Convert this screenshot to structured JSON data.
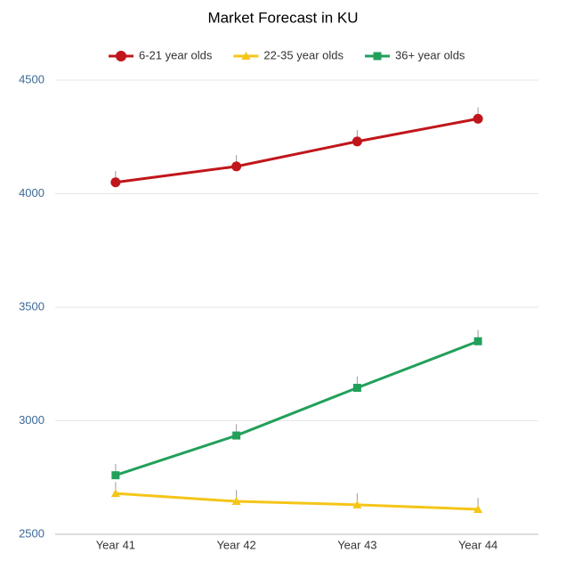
{
  "chart_data": {
    "type": "line",
    "title": "Market Forecast in KU",
    "categories": [
      "Year 41",
      "Year 42",
      "Year 43",
      "Year 44"
    ],
    "series": [
      {
        "name": "6-21 year olds",
        "color": "#c0161b",
        "marker": "circle",
        "values": [
          4050,
          4120,
          4230,
          4330
        ],
        "errors": [
          50,
          50,
          50,
          50
        ]
      },
      {
        "name": "22-35 year olds",
        "color": "#f5c518",
        "marker": "triangle",
        "values": [
          2680,
          2645,
          2630,
          2610
        ],
        "errors": [
          50,
          50,
          50,
          50
        ]
      },
      {
        "name": "36+ year olds",
        "color": "#22a05a",
        "marker": "square",
        "values": [
          2760,
          2935,
          3145,
          3350
        ],
        "errors": [
          50,
          50,
          50,
          50
        ]
      }
    ],
    "ylim": [
      2500,
      4500
    ],
    "yticks": [
      2500,
      3000,
      3500,
      4000,
      4500
    ],
    "grid": true,
    "legend": "top"
  }
}
